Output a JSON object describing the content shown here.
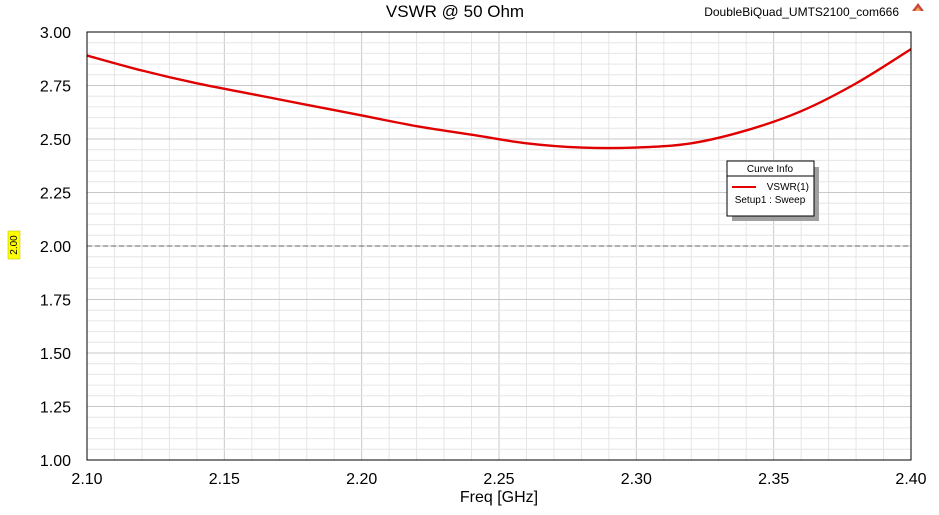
{
  "window": {
    "project_name": "DoubleBiQuad_UMTS2100_com666"
  },
  "legend": {
    "title": "Curve Info",
    "entry": "VSWR(1)",
    "setup": "Setup1 : Sweep"
  },
  "marker": {
    "label": "2.00",
    "value": 2.0,
    "color": "#ffff00"
  },
  "colors": {
    "series": "#e00000",
    "reference_line": "#808080",
    "grid_major": "#c8c8c8",
    "grid_minor": "#e6e6e6",
    "plot_border": "#000000"
  },
  "chart_data": {
    "type": "line",
    "title": "VSWR @ 50 Ohm",
    "xlabel": "Freq [GHz]",
    "ylabel": "",
    "xlim": [
      2.1,
      2.4
    ],
    "ylim": [
      1.0,
      3.0
    ],
    "x_ticks": [
      "2.10",
      "2.15",
      "2.20",
      "2.25",
      "2.30",
      "2.35",
      "2.40"
    ],
    "y_ticks": [
      "1.00",
      "1.25",
      "1.50",
      "1.75",
      "2.00",
      "2.25",
      "2.50",
      "2.75",
      "3.00"
    ],
    "grid": true,
    "legend_position": "right",
    "reference_line_y": 2.0,
    "series": [
      {
        "name": "VSWR(1)",
        "x": [
          2.1,
          2.12,
          2.14,
          2.16,
          2.18,
          2.2,
          2.22,
          2.24,
          2.26,
          2.28,
          2.3,
          2.32,
          2.34,
          2.36,
          2.38,
          2.4
        ],
        "y": [
          2.89,
          2.82,
          2.76,
          2.71,
          2.66,
          2.61,
          2.56,
          2.52,
          2.48,
          2.46,
          2.46,
          2.48,
          2.54,
          2.63,
          2.76,
          2.92
        ]
      }
    ]
  }
}
